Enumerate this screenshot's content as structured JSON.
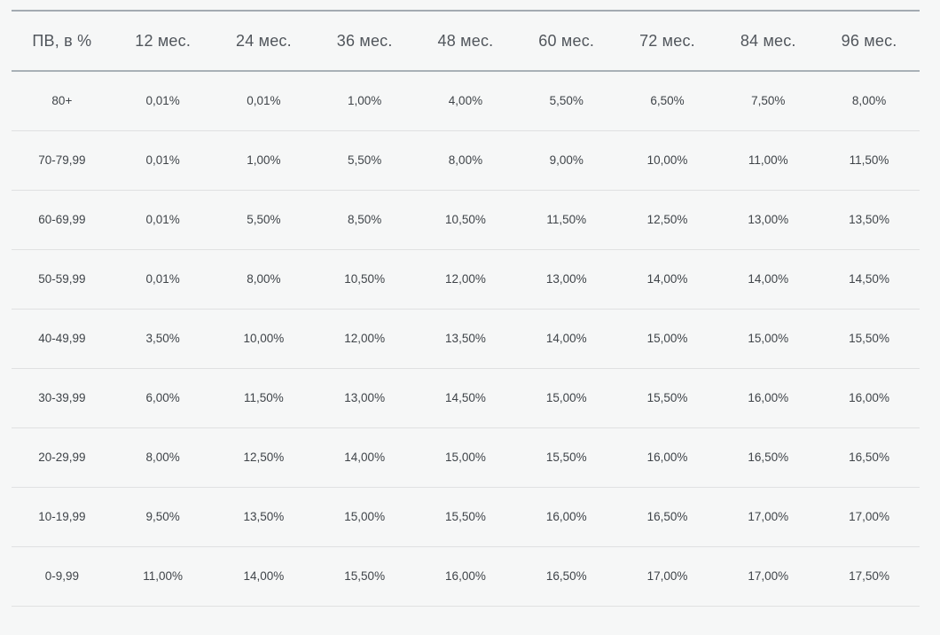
{
  "colors": {
    "background": "#f6f7f7",
    "top_border": "#a3abb2",
    "header_divider": "#a9b1b7",
    "row_divider": "#e0e1e2",
    "header_text": "#51565c",
    "cell_text": "#3f4449"
  },
  "chart_data": {
    "type": "table",
    "title": "",
    "layout_hints": {
      "alignment": "center",
      "grid": "horizontal-dividers-only",
      "decimal_separator": ","
    },
    "columns": [
      "ПВ, в %",
      "12 мес.",
      "24 мес.",
      "36 мес.",
      "48 мес.",
      "60 мес.",
      "72 мес.",
      "84 мес.",
      "96 мес."
    ],
    "rows": [
      {
        "label": "80+",
        "values": [
          "0,01%",
          "0,01%",
          "1,00%",
          "4,00%",
          "5,50%",
          "6,50%",
          "7,50%",
          "8,00%"
        ]
      },
      {
        "label": "70-79,99",
        "values": [
          "0,01%",
          "1,00%",
          "5,50%",
          "8,00%",
          "9,00%",
          "10,00%",
          "11,00%",
          "11,50%"
        ]
      },
      {
        "label": "60-69,99",
        "values": [
          "0,01%",
          "5,50%",
          "8,50%",
          "10,50%",
          "11,50%",
          "12,50%",
          "13,00%",
          "13,50%"
        ]
      },
      {
        "label": "50-59,99",
        "values": [
          "0,01%",
          "8,00%",
          "10,50%",
          "12,00%",
          "13,00%",
          "14,00%",
          "14,00%",
          "14,50%"
        ]
      },
      {
        "label": "40-49,99",
        "values": [
          "3,50%",
          "10,00%",
          "12,00%",
          "13,50%",
          "14,00%",
          "15,00%",
          "15,00%",
          "15,50%"
        ]
      },
      {
        "label": "30-39,99",
        "values": [
          "6,00%",
          "11,50%",
          "13,00%",
          "14,50%",
          "15,00%",
          "15,50%",
          "16,00%",
          "16,00%"
        ]
      },
      {
        "label": "20-29,99",
        "values": [
          "8,00%",
          "12,50%",
          "14,00%",
          "15,00%",
          "15,50%",
          "16,00%",
          "16,50%",
          "16,50%"
        ]
      },
      {
        "label": "10-19,99",
        "values": [
          "9,50%",
          "13,50%",
          "15,00%",
          "15,50%",
          "16,00%",
          "16,50%",
          "17,00%",
          "17,00%"
        ]
      },
      {
        "label": "0-9,99",
        "values": [
          "11,00%",
          "14,00%",
          "15,50%",
          "16,00%",
          "16,50%",
          "17,00%",
          "17,00%",
          "17,50%"
        ]
      }
    ]
  }
}
